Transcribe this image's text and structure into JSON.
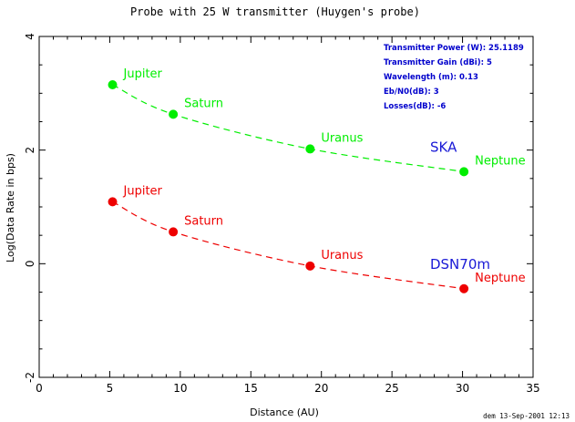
{
  "chart_data": {
    "type": "scatter",
    "title": "Probe with 25 W transmitter (Huygen's probe)",
    "xlabel": "Distance (AU)",
    "ylabel": "Log(Data Rate in bps)",
    "xlim": [
      0,
      35
    ],
    "ylim": [
      -2,
      4
    ],
    "x_ticks": [
      0,
      5,
      10,
      15,
      20,
      25,
      30,
      35
    ],
    "y_ticks": [
      -2,
      0,
      2,
      4
    ],
    "grid": false,
    "series": [
      {
        "name": "SKA",
        "color": "#00ee00",
        "points": [
          {
            "label": "Jupiter",
            "x": 5.2,
            "y": 3.15
          },
          {
            "label": "Saturn",
            "x": 9.5,
            "y": 2.63
          },
          {
            "label": "Uranus",
            "x": 19.2,
            "y": 2.02
          },
          {
            "label": "Neptune",
            "x": 30.1,
            "y": 1.62
          }
        ]
      },
      {
        "name": "DSN70m",
        "color": "#ee0000",
        "points": [
          {
            "label": "Jupiter",
            "x": 5.2,
            "y": 1.09
          },
          {
            "label": "Saturn",
            "x": 9.5,
            "y": 0.56
          },
          {
            "label": "Uranus",
            "x": 19.2,
            "y": -0.04
          },
          {
            "label": "Neptune",
            "x": 30.1,
            "y": -0.44
          }
        ]
      }
    ],
    "annotations": [
      {
        "label": "Transmitter Power (W):",
        "value": "25.1189"
      },
      {
        "label": "Transmitter Gain (dBi):",
        "value": "5"
      },
      {
        "label": "Wavelength (m):",
        "value": "0.13"
      },
      {
        "label": "Eb/N0(dB):",
        "value": "3"
      },
      {
        "label": "Losses(dB):",
        "value": "-6"
      }
    ],
    "footer": "dem 13-Sep-2001 12:13"
  }
}
